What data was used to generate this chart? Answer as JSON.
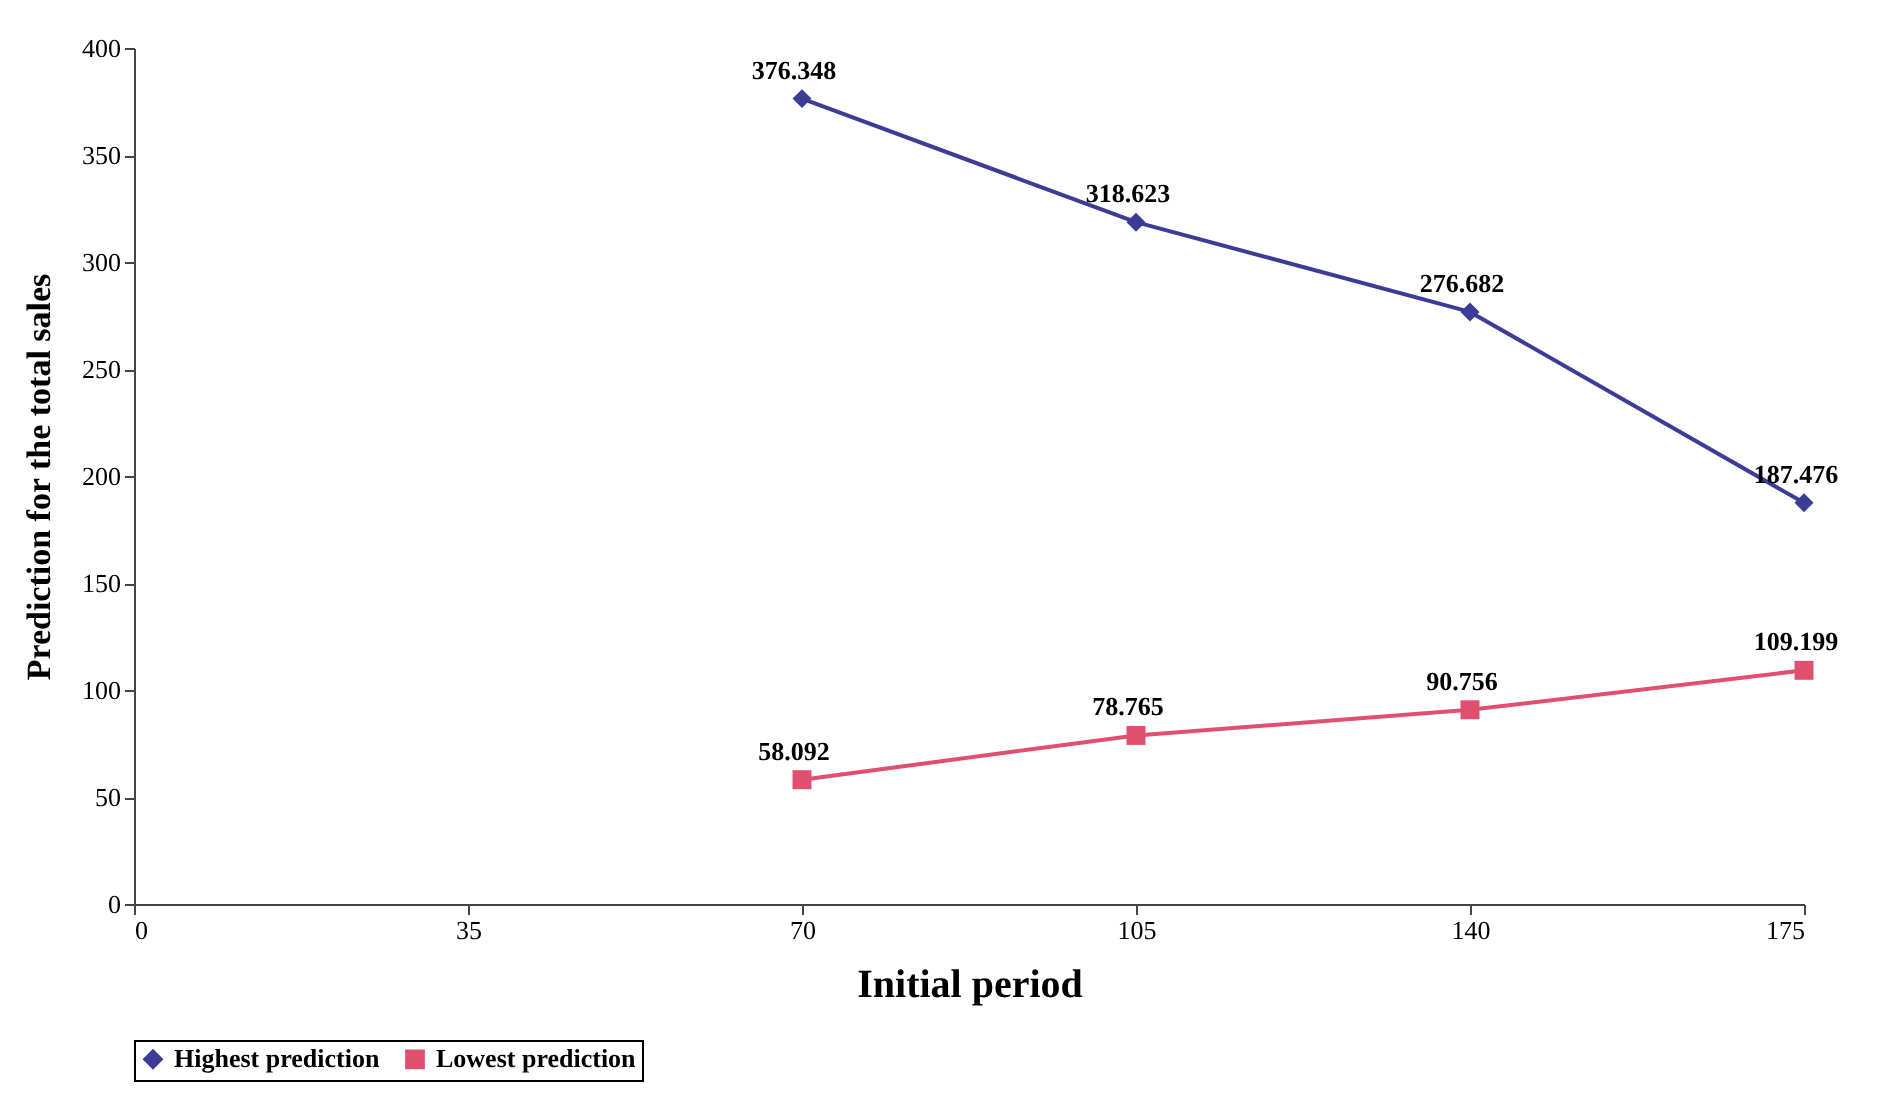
{
  "chart_data": {
    "type": "line",
    "xlabel": "Initial period",
    "ylabel": "Prediction for the total sales",
    "x": [
      70,
      105,
      140,
      175
    ],
    "series": [
      {
        "name": "Highest prediction",
        "color": "#3c3c96",
        "marker": "diamond",
        "values": [
          376.348,
          318.623,
          276.682,
          187.476
        ]
      },
      {
        "name": "Lowest prediction",
        "color": "#e0506e",
        "marker": "square",
        "values": [
          58.092,
          78.765,
          90.756,
          109.199
        ]
      }
    ],
    "xlim": [
      0,
      175
    ],
    "xticks": [
      0,
      35,
      70,
      105,
      140,
      175
    ],
    "ylim": [
      0,
      400
    ],
    "yticks": [
      0,
      50,
      100,
      150,
      200,
      250,
      300,
      350,
      400
    ],
    "data_labels": true,
    "legend": "bottom",
    "grid": false,
    "line_style": "solid"
  }
}
